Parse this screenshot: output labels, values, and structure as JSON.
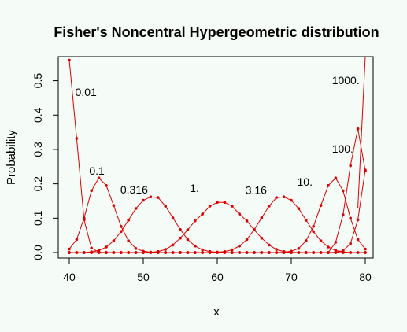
{
  "chart_data": {
    "type": "line",
    "title": "Fisher's Noncentral Hypergeometric distribution",
    "xlabel": "x",
    "ylabel": "Probability",
    "xlim": [
      40,
      80
    ],
    "ylim": [
      0,
      0.57
    ],
    "x_ticks": [
      40,
      50,
      60,
      70,
      80
    ],
    "y_ticks": [
      0.0,
      0.1,
      0.2,
      0.3,
      0.4,
      0.5
    ],
    "x_tick_labels": [
      "40",
      "50",
      "60",
      "70",
      "80"
    ],
    "y_tick_labels": [
      "0.0",
      "0.1",
      "0.2",
      "0.3",
      "0.4",
      "0.5"
    ],
    "grid": false,
    "color": "#dd0000",
    "x": [
      40,
      41,
      42,
      43,
      44,
      45,
      46,
      47,
      48,
      49,
      50,
      51,
      52,
      53,
      54,
      55,
      56,
      57,
      58,
      59,
      60,
      61,
      62,
      63,
      64,
      65,
      66,
      67,
      68,
      69,
      70,
      71,
      72,
      73,
      74,
      75,
      76,
      77,
      78,
      79,
      80
    ],
    "series": [
      {
        "label": "0.01",
        "label_x": 40.8,
        "label_y": 0.455,
        "values": [
          0.56,
          0.332,
          0.095,
          0.013,
          0.001,
          0,
          0,
          0,
          0,
          0,
          0,
          0,
          0,
          0,
          0,
          0,
          0,
          0,
          0,
          0,
          0,
          0,
          0,
          0,
          0,
          0,
          0,
          0,
          0,
          0,
          0,
          0,
          0,
          0,
          0,
          0,
          0,
          0,
          0,
          0,
          0
        ]
      },
      {
        "label": "0.1",
        "label_x": 42.7,
        "label_y": 0.227,
        "values": [
          0.01,
          0.038,
          0.1,
          0.18,
          0.217,
          0.195,
          0.137,
          0.076,
          0.034,
          0.012,
          0.004,
          0.001,
          0,
          0,
          0,
          0,
          0,
          0,
          0,
          0,
          0,
          0,
          0,
          0,
          0,
          0,
          0,
          0,
          0,
          0,
          0,
          0,
          0,
          0,
          0,
          0,
          0,
          0,
          0,
          0,
          0
        ]
      },
      {
        "label": "0.316",
        "label_x": 46.9,
        "label_y": 0.172,
        "values": [
          0,
          0,
          0,
          0.002,
          0.006,
          0.016,
          0.034,
          0.061,
          0.094,
          0.128,
          0.152,
          0.162,
          0.16,
          0.135,
          0.101,
          0.067,
          0.038,
          0.019,
          0.008,
          0.003,
          0.001,
          0,
          0,
          0,
          0,
          0,
          0,
          0,
          0,
          0,
          0,
          0,
          0,
          0,
          0,
          0,
          0,
          0,
          0,
          0,
          0
        ]
      },
      {
        "label": "1.",
        "label_x": 56.3,
        "label_y": 0.176,
        "values": [
          0,
          0,
          0,
          0,
          0,
          0,
          0,
          0,
          0,
          0,
          0,
          0.001,
          0.003,
          0.009,
          0.022,
          0.042,
          0.066,
          0.092,
          0.112,
          0.135,
          0.146,
          0.146,
          0.135,
          0.112,
          0.092,
          0.066,
          0.042,
          0.022,
          0.009,
          0.003,
          0.001,
          0,
          0,
          0,
          0,
          0,
          0,
          0,
          0,
          0,
          0
        ]
      },
      {
        "label": "3.16",
        "label_x": 63.8,
        "label_y": 0.17,
        "values": [
          0,
          0,
          0,
          0,
          0,
          0,
          0,
          0,
          0,
          0,
          0,
          0,
          0,
          0,
          0,
          0,
          0,
          0,
          0,
          0,
          0.001,
          0.003,
          0.008,
          0.019,
          0.038,
          0.067,
          0.101,
          0.135,
          0.16,
          0.162,
          0.152,
          0.128,
          0.094,
          0.061,
          0.034,
          0.016,
          0.006,
          0.002,
          0,
          0,
          0
        ]
      },
      {
        "label": "10.",
        "label_x": 70.8,
        "label_y": 0.195,
        "values": [
          0,
          0,
          0,
          0,
          0,
          0,
          0,
          0,
          0,
          0,
          0,
          0,
          0,
          0,
          0,
          0,
          0,
          0,
          0,
          0,
          0,
          0,
          0,
          0,
          0,
          0,
          0,
          0,
          0,
          0.001,
          0.004,
          0.012,
          0.034,
          0.076,
          0.137,
          0.195,
          0.217,
          0.18,
          0.1,
          0.038,
          0.01
        ]
      },
      {
        "label": "100.",
        "label_x": 75.5,
        "label_y": 0.291,
        "values": [
          0,
          0,
          0,
          0,
          0,
          0,
          0,
          0,
          0,
          0,
          0,
          0,
          0,
          0,
          0,
          0,
          0,
          0,
          0,
          0,
          0,
          0,
          0,
          0,
          0,
          0,
          0,
          0,
          0,
          0,
          0,
          0,
          0,
          0,
          0,
          0,
          0.001,
          0.005,
          0.026,
          0.095,
          0.24
        ]
      },
      {
        "label": "1000.",
        "label_x": 75.5,
        "label_y": 0.49,
        "values": [
          0,
          0,
          0,
          0,
          0,
          0,
          0,
          0,
          0,
          0,
          0,
          0,
          0,
          0,
          0,
          0,
          0,
          0,
          0,
          0,
          0,
          0,
          0,
          0,
          0,
          0,
          0,
          0,
          0,
          0,
          0,
          0,
          0,
          0,
          0,
          0,
          0.03,
          0.11,
          0.253,
          0.36,
          0.238
        ]
      }
    ],
    "tail_segment": {
      "x": [
        79,
        80
      ],
      "y": [
        0.13,
        0.57
      ]
    }
  }
}
